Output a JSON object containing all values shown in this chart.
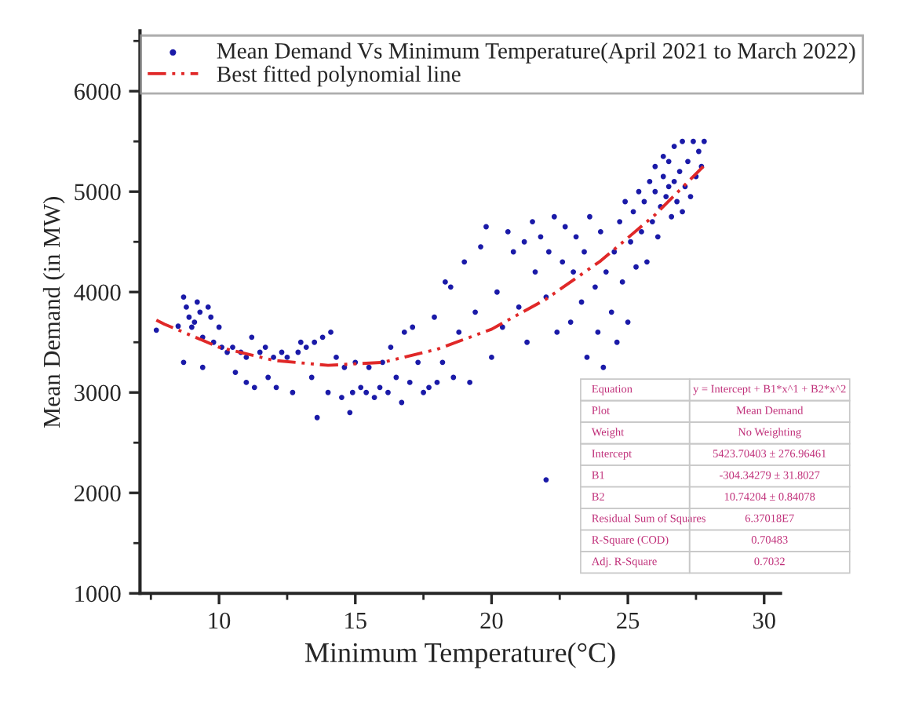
{
  "chart_data": {
    "type": "scatter",
    "xlabel": "Minimum Temperature(°C)",
    "ylabel": "Mean Demand (in MW)",
    "xlim": [
      7.1,
      30.6
    ],
    "xticks": [
      10,
      15,
      20,
      25,
      30
    ],
    "ylim": [
      1000,
      6600
    ],
    "yticks": [
      1000,
      2000,
      3000,
      4000,
      5000,
      6000
    ],
    "grid": false,
    "legend": "top",
    "marker": "circle",
    "series": [
      {
        "name": "Mean Demand Vs Minimum Temperature(April 2021 to March 2022)",
        "color": "#1a1aa8",
        "x": [
          7.7,
          8.5,
          8.7,
          8.7,
          8.8,
          8.9,
          9.0,
          9.1,
          9.2,
          9.3,
          9.4,
          9.4,
          9.6,
          9.7,
          9.8,
          10.0,
          10.1,
          10.3,
          10.5,
          10.6,
          10.8,
          11.0,
          11.0,
          11.2,
          11.3,
          11.5,
          11.7,
          11.8,
          12.0,
          12.1,
          12.3,
          12.5,
          12.7,
          12.9,
          13.0,
          13.2,
          13.4,
          13.5,
          13.6,
          13.8,
          14.0,
          14.1,
          14.3,
          14.5,
          14.6,
          14.8,
          14.9,
          15.0,
          15.2,
          15.4,
          15.5,
          15.7,
          15.9,
          16.0,
          16.2,
          16.3,
          16.5,
          16.7,
          16.8,
          17.0,
          17.1,
          17.3,
          17.5,
          17.7,
          17.9,
          18.0,
          18.2,
          18.3,
          18.5,
          18.6,
          18.8,
          19.0,
          19.2,
          19.4,
          19.6,
          19.8,
          20.0,
          20.2,
          20.4,
          20.6,
          20.8,
          21.0,
          21.2,
          21.3,
          21.5,
          21.6,
          21.8,
          22.0,
          22.0,
          22.1,
          22.3,
          22.4,
          22.6,
          22.7,
          22.9,
          23.0,
          23.1,
          23.3,
          23.4,
          23.5,
          23.6,
          23.8,
          23.9,
          24.0,
          24.1,
          24.2,
          24.4,
          24.5,
          24.6,
          24.7,
          24.8,
          24.9,
          25.0,
          25.1,
          25.2,
          25.3,
          25.4,
          25.5,
          25.6,
          25.7,
          25.8,
          25.9,
          26.0,
          26.0,
          26.1,
          26.2,
          26.3,
          26.3,
          26.4,
          26.5,
          26.5,
          26.6,
          26.7,
          26.7,
          26.8,
          26.9,
          27.0,
          27.0,
          27.1,
          27.2,
          27.3,
          27.4,
          27.5,
          27.6,
          27.7,
          27.8
        ],
        "values": [
          3620,
          3660,
          3950,
          3300,
          3850,
          3750,
          3650,
          3700,
          3900,
          3800,
          3550,
          3250,
          3850,
          3750,
          3500,
          3650,
          3450,
          3400,
          3450,
          3200,
          3400,
          3350,
          3100,
          3550,
          3050,
          3400,
          3450,
          3150,
          3350,
          3050,
          3400,
          3350,
          3000,
          3400,
          3500,
          3450,
          3150,
          3500,
          2750,
          3550,
          3000,
          3600,
          3350,
          2950,
          3250,
          2800,
          3000,
          3300,
          3050,
          3000,
          3250,
          2950,
          3050,
          3300,
          3000,
          3450,
          3150,
          2900,
          3600,
          3100,
          3650,
          3300,
          3000,
          3050,
          3750,
          3100,
          3300,
          4100,
          4050,
          3150,
          3600,
          4300,
          3100,
          3800,
          4450,
          4650,
          3350,
          4000,
          3650,
          4600,
          4400,
          3850,
          4500,
          3500,
          4700,
          4200,
          4550,
          2130,
          3950,
          4400,
          4750,
          3600,
          4300,
          4650,
          3700,
          4200,
          4550,
          3900,
          4400,
          3350,
          4750,
          4050,
          3600,
          4600,
          3250,
          4200,
          3800,
          4400,
          3500,
          4700,
          4100,
          4900,
          3700,
          4500,
          4800,
          4250,
          5000,
          4600,
          4900,
          4300,
          5100,
          4700,
          5000,
          5250,
          4550,
          4850,
          5150,
          5350,
          4950,
          5050,
          5300,
          4750,
          5100,
          5450,
          4900,
          5200,
          5500,
          4800,
          5050,
          5300,
          4950,
          5500,
          5150,
          5400,
          5250,
          5500
        ]
      },
      {
        "name": "Best fitted polynomial line",
        "type": "line",
        "color": "#e02828",
        "line_style": "dashed",
        "marker": "none",
        "x": [
          7.7,
          8,
          10,
          12,
          14,
          16,
          18,
          20,
          22,
          24,
          26,
          27.8
        ],
        "values": [
          3720,
          3680,
          3450,
          3320,
          3270,
          3300,
          3430,
          3630,
          3930,
          4310,
          4770,
          5260
        ]
      }
    ],
    "annotations": [
      "Equation",
      "y = Intercept + B1*x^1 + B2*x^2",
      "Plot",
      "Mean Demand",
      "Weight",
      "No Weighting",
      "Intercept",
      "5423.70403 ± 276.96461",
      "B1",
      "-304.34279 ± 31.8027",
      "B2",
      "10.74204 ± 0.84078",
      "Residual Sum of Squares",
      "6.37018E7",
      "R-Square (COD)",
      "0.70483",
      "Adj. R-Square",
      "0.7032"
    ]
  }
}
